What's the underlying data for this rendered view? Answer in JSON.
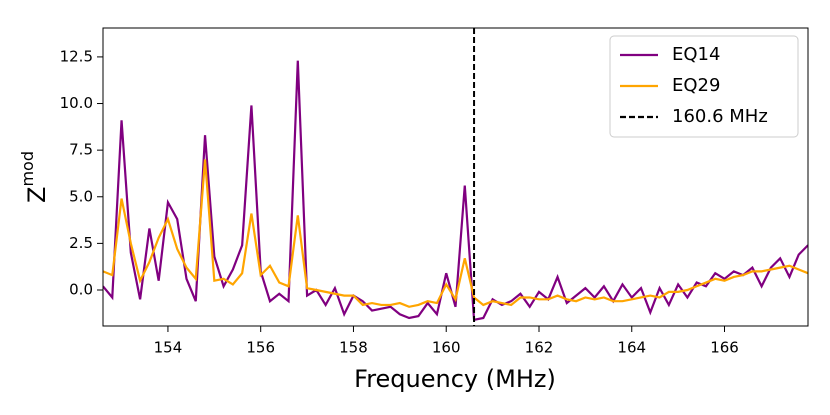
{
  "chart_data": {
    "type": "line",
    "xlabel": "Frequency (MHz)",
    "ylabel": "Z",
    "ylabel_sup": "mod",
    "x": [
      152.6,
      152.8,
      153.0,
      153.2,
      153.4,
      153.6,
      153.8,
      154.0,
      154.2,
      154.4,
      154.6,
      154.8,
      155.0,
      155.2,
      155.4,
      155.6,
      155.8,
      156.0,
      156.2,
      156.4,
      156.6,
      156.8,
      157.0,
      157.2,
      157.4,
      157.6,
      157.8,
      158.0,
      158.2,
      158.4,
      158.6,
      158.8,
      159.0,
      159.2,
      159.4,
      159.6,
      159.8,
      160.0,
      160.2,
      160.4,
      160.6,
      160.8,
      161.0,
      161.2,
      161.4,
      161.6,
      161.8,
      162.0,
      162.2,
      162.4,
      162.6,
      162.8,
      163.0,
      163.2,
      163.4,
      163.6,
      163.8,
      164.0,
      164.2,
      164.4,
      164.6,
      164.8,
      165.0,
      165.2,
      165.4,
      165.6,
      165.8,
      166.0,
      166.2,
      166.4,
      166.6,
      166.8,
      167.0,
      167.2,
      167.4,
      167.6,
      167.8
    ],
    "series": [
      {
        "name": "EQ14",
        "color": "#800080",
        "values": [
          0.2,
          -0.4,
          9.1,
          2.0,
          -0.5,
          3.3,
          0.5,
          4.7,
          3.8,
          0.6,
          -0.6,
          8.3,
          1.8,
          0.2,
          1.1,
          2.4,
          9.9,
          1.0,
          -0.6,
          -0.2,
          -0.6,
          12.3,
          -0.3,
          0.0,
          -0.8,
          0.1,
          -1.3,
          -0.3,
          -0.6,
          -1.1,
          -1.0,
          -0.9,
          -1.3,
          -1.5,
          -1.4,
          -0.7,
          -1.3,
          0.9,
          -0.9,
          5.6,
          -1.6,
          -1.5,
          -0.5,
          -0.8,
          -0.6,
          -0.2,
          -0.9,
          -0.1,
          -0.5,
          0.7,
          -0.7,
          -0.3,
          0.1,
          -0.4,
          0.2,
          -0.6,
          0.3,
          -0.4,
          0.1,
          -1.2,
          0.1,
          -0.8,
          0.3,
          -0.4,
          0.4,
          0.2,
          0.9,
          0.6,
          1.0,
          0.8,
          1.2,
          0.2,
          1.2,
          1.7,
          0.7,
          1.9,
          2.4
        ]
      },
      {
        "name": "EQ29",
        "color": "#ffa500",
        "values": [
          1.0,
          0.8,
          4.9,
          2.5,
          0.5,
          1.5,
          2.8,
          3.8,
          2.2,
          1.2,
          0.6,
          7.0,
          0.5,
          0.6,
          0.3,
          0.9,
          4.1,
          0.8,
          1.3,
          0.4,
          0.2,
          4.0,
          0.1,
          0.0,
          -0.1,
          -0.2,
          -0.3,
          -0.3,
          -0.8,
          -0.7,
          -0.8,
          -0.8,
          -0.7,
          -0.9,
          -0.8,
          -0.6,
          -0.7,
          0.3,
          -0.5,
          1.7,
          -0.4,
          -0.8,
          -0.6,
          -0.7,
          -0.8,
          -0.4,
          -0.4,
          -0.5,
          -0.5,
          -0.3,
          -0.5,
          -0.6,
          -0.4,
          -0.5,
          -0.4,
          -0.6,
          -0.6,
          -0.5,
          -0.4,
          -0.3,
          -0.4,
          -0.1,
          -0.1,
          0.0,
          0.2,
          0.4,
          0.6,
          0.5,
          0.7,
          0.8,
          1.0,
          1.0,
          1.1,
          1.2,
          1.3,
          1.1,
          0.9
        ]
      }
    ],
    "vline": {
      "x": 160.6,
      "name": "160.6 MHz",
      "color": "#000000"
    },
    "xlim": [
      152.6,
      167.8
    ],
    "ylim": [
      -1.93,
      14.05
    ],
    "xticks": [
      154,
      156,
      158,
      160,
      162,
      164,
      166
    ],
    "yticks": [
      {
        "value": 0,
        "label": "0.0"
      },
      2.5,
      {
        "value": 5,
        "label": "5.0"
      },
      7.5,
      {
        "value": 10,
        "label": "10.0"
      },
      12.5
    ],
    "legend": "upper right"
  }
}
